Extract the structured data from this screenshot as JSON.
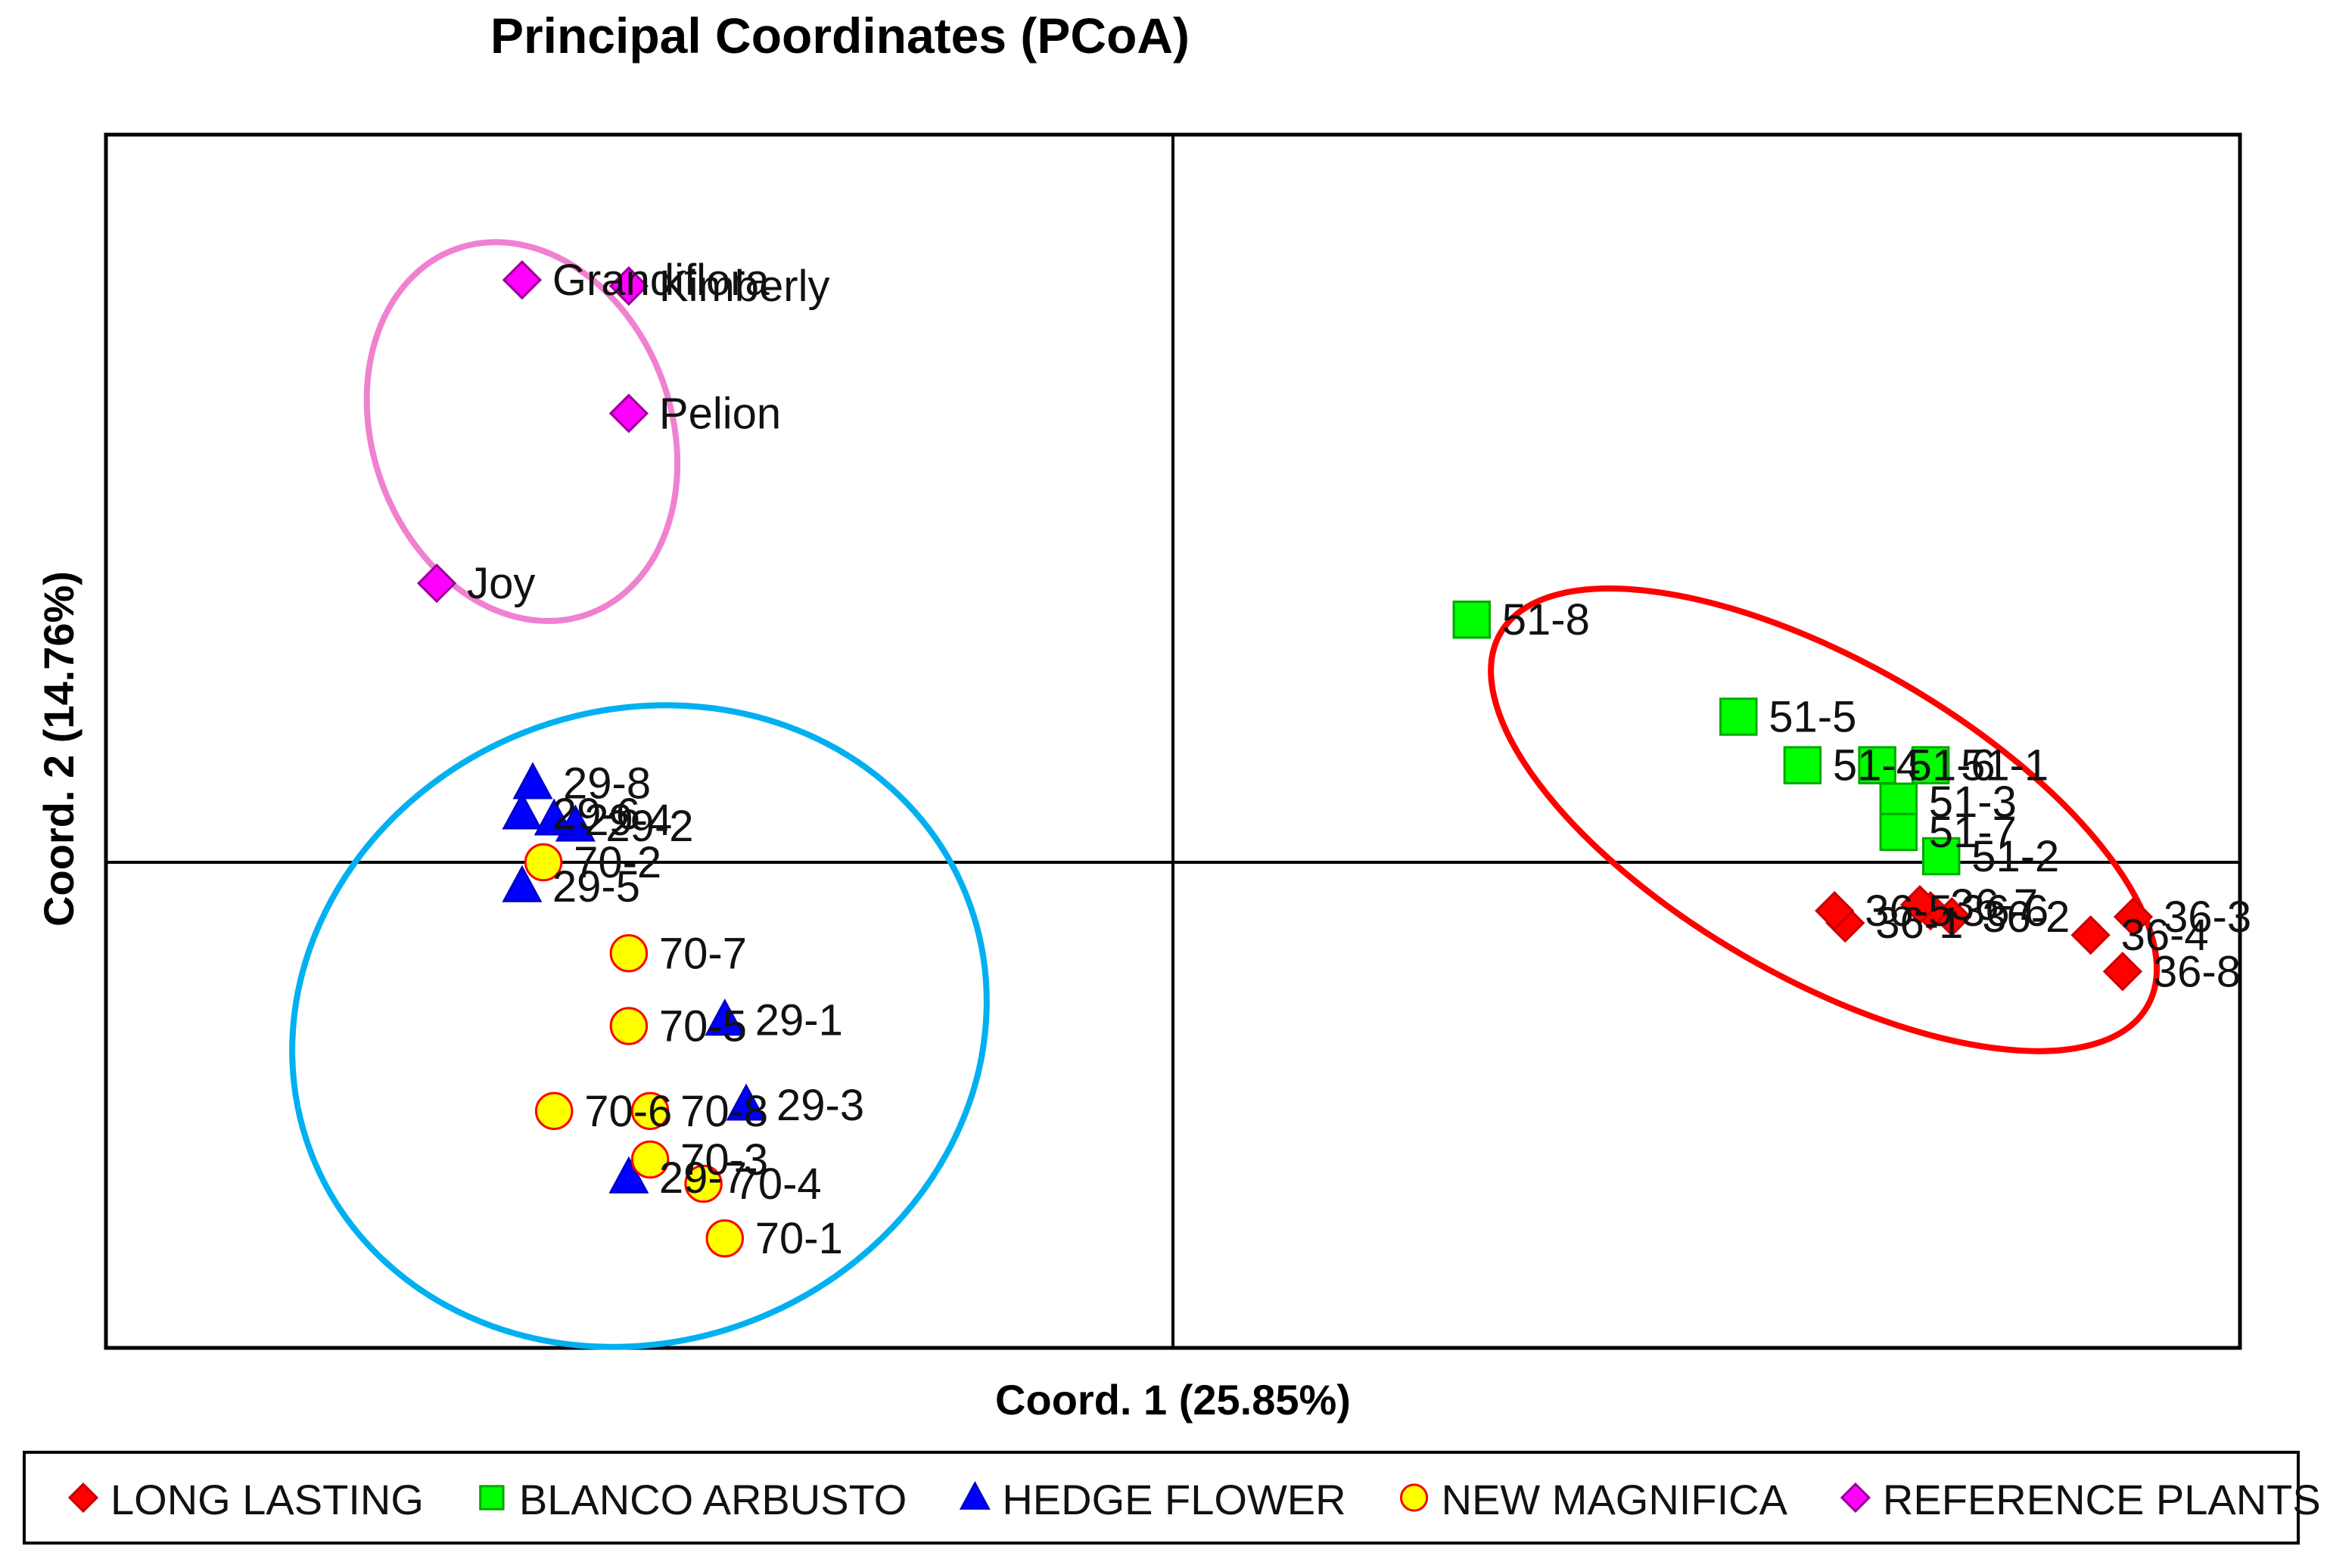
{
  "chart_data": {
    "type": "scatter",
    "title": "Principal Coordinates (PCoA)",
    "xlabel": "Coord. 1 (25.85%)",
    "ylabel": "Coord. 2 (14.76%)",
    "xlim": [
      -1.0,
      1.0
    ],
    "ylim": [
      -1.0,
      1.0
    ],
    "grid": false,
    "legend_position": "bottom",
    "series": [
      {
        "name": "LONG LASTING",
        "marker": "diamond",
        "color": "#ff0000",
        "edge": "#cc0000",
        "points": [
          {
            "label": "36-1",
            "x": 0.63,
            "y": -0.1
          },
          {
            "label": "36-2",
            "x": 0.73,
            "y": -0.09
          },
          {
            "label": "36-3",
            "x": 0.9,
            "y": -0.09
          },
          {
            "label": "36-4",
            "x": 0.86,
            "y": -0.12
          },
          {
            "label": "36-5",
            "x": 0.62,
            "y": -0.08
          },
          {
            "label": "36-6",
            "x": 0.71,
            "y": -0.08
          },
          {
            "label": "36-7",
            "x": 0.7,
            "y": -0.07
          },
          {
            "label": "36-8",
            "x": 0.89,
            "y": -0.18
          }
        ]
      },
      {
        "name": "BLANCO ARBUSTO",
        "marker": "square",
        "color": "#00ff00",
        "edge": "#00aa00",
        "points": [
          {
            "label": "51-1",
            "x": 0.71,
            "y": 0.16
          },
          {
            "label": "51-2",
            "x": 0.72,
            "y": 0.01
          },
          {
            "label": "51-3",
            "x": 0.68,
            "y": 0.1
          },
          {
            "label": "51-4",
            "x": 0.59,
            "y": 0.16
          },
          {
            "label": "51-5",
            "x": 0.53,
            "y": 0.24
          },
          {
            "label": "51-6",
            "x": 0.66,
            "y": 0.16
          },
          {
            "label": "51-7",
            "x": 0.68,
            "y": 0.05
          },
          {
            "label": "51-8",
            "x": 0.28,
            "y": 0.4
          }
        ]
      },
      {
        "name": "HEDGE FLOWER",
        "marker": "triangle",
        "color": "#0000ff",
        "edge": "#0000cc",
        "points": [
          {
            "label": "29-1",
            "x": -0.42,
            "y": -0.26
          },
          {
            "label": "29-2",
            "x": -0.56,
            "y": 0.06
          },
          {
            "label": "29-3",
            "x": -0.4,
            "y": -0.4
          },
          {
            "label": "29-4",
            "x": -0.58,
            "y": 0.07
          },
          {
            "label": "29-5",
            "x": -0.61,
            "y": -0.04
          },
          {
            "label": "29-6",
            "x": -0.61,
            "y": 0.08
          },
          {
            "label": "29-7",
            "x": -0.51,
            "y": -0.52
          },
          {
            "label": "29-8",
            "x": -0.6,
            "y": 0.13
          }
        ]
      },
      {
        "name": "NEW MAGNIFICA",
        "marker": "circle",
        "color": "#ffff00",
        "edge": "#ff0000",
        "points": [
          {
            "label": "70-1",
            "x": -0.42,
            "y": -0.62
          },
          {
            "label": "70-2",
            "x": -0.59,
            "y": 0.0
          },
          {
            "label": "70-3",
            "x": -0.49,
            "y": -0.49
          },
          {
            "label": "70-4",
            "x": -0.44,
            "y": -0.53
          },
          {
            "label": "70-5",
            "x": -0.51,
            "y": -0.27
          },
          {
            "label": "70-6",
            "x": -0.58,
            "y": -0.41
          },
          {
            "label": "70-7",
            "x": -0.51,
            "y": -0.15
          },
          {
            "label": "70-8",
            "x": -0.49,
            "y": -0.41
          }
        ]
      },
      {
        "name": "REFERENCE PLANTS",
        "marker": "diamond",
        "color": "#ff00ff",
        "edge": "#990099",
        "points": [
          {
            "label": "Grandiflora",
            "x": -0.61,
            "y": 0.96
          },
          {
            "label": "Kimberly",
            "x": -0.51,
            "y": 0.95
          },
          {
            "label": "Pelion",
            "x": -0.51,
            "y": 0.74
          },
          {
            "label": "Joy",
            "x": -0.69,
            "y": 0.46
          }
        ]
      }
    ],
    "ellipses": [
      {
        "name": "reference-plants-cluster",
        "color": "#f080d0",
        "cx": -0.61,
        "cy": 0.71,
        "rx": 0.14,
        "ry": 0.32,
        "angle": -20
      },
      {
        "name": "hedge-magnifica-cluster",
        "color": "#00b0f0",
        "cx": -0.5,
        "cy": -0.27,
        "rx": 0.33,
        "ry": 0.52,
        "angle": -22
      },
      {
        "name": "long-lasting-blanco-cluster",
        "color": "#ff0000",
        "cx": 0.61,
        "cy": 0.07,
        "rx": 0.35,
        "ry": 0.26,
        "angle": 30
      }
    ]
  }
}
